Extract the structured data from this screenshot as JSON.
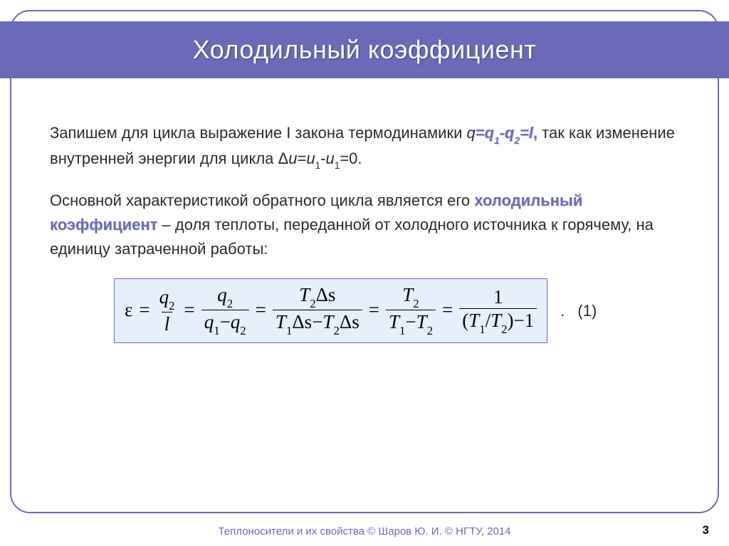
{
  "colors": {
    "accent": "#6a6ab8",
    "formula_bg": "#e6effa",
    "text": "#2b2b2b",
    "title_text": "#ffffff"
  },
  "typography": {
    "title_fontsize": 36,
    "body_fontsize": 22,
    "formula_fontsize": 27,
    "formula_family": "Times New Roman"
  },
  "title": "Холодильный коэффициент",
  "body": {
    "p1_lead": " Запишем для цикла выражение I закона термодинамики ",
    "p1_eq_prefix": "q",
    "p1_eq_accent": "=q",
    "p1_eq_sub1": "1",
    "p1_eq_mid": "-q",
    "p1_eq_sub2": "2",
    "p1_eq_tail": "=l",
    "p1_comma": ",",
    "p1_rest_a": " так как изменение внутренней энергии для цикла Δ",
    "p1_rest_u": "u",
    "p1_rest_eq": "=",
    "p1_rest_u1": "u",
    "p1_rest_s1": "1",
    "p1_rest_minus": "-",
    "p1_rest_u2": "u",
    "p1_rest_s2": "1",
    "p1_rest_zero": "=0.",
    "p2_lead": " Основной характеристикой обратного цикла является его ",
    "p2_accent": "холодильный коэффициент",
    "p2_rest": " – доля теплоты, переданной от холодного источника к горячему, на единицу затраченной работы:"
  },
  "formula": {
    "epsilon": "ε",
    "eq": "=",
    "f1": {
      "num": "q",
      "num_sub": "2",
      "den": "l"
    },
    "f2": {
      "num": "q",
      "num_sub": "2",
      "den_a": "q",
      "den_a_sub": "1",
      "den_op": "−",
      "den_b": "q",
      "den_b_sub": "2"
    },
    "f3": {
      "num_a": "T",
      "num_a_sub": "2",
      "num_b": "Δs",
      "den_a": "T",
      "den_a_sub": "1",
      "den_b": "Δs",
      "den_op": "−",
      "den_c": "T",
      "den_c_sub": "2",
      "den_d": "Δs"
    },
    "f4": {
      "num": "T",
      "num_sub": "2",
      "den_a": "T",
      "den_a_sub": "1",
      "den_op": "−",
      "den_b": "T",
      "den_b_sub": "2"
    },
    "f5": {
      "num": "1",
      "den_open": "(",
      "den_a": "T",
      "den_a_sub": "1",
      "den_slash": "/",
      "den_b": "T",
      "den_b_sub": "2",
      "den_close": ")",
      "den_op": "−",
      "den_one": "1"
    },
    "trail_dot": ".",
    "label": "(1)"
  },
  "footer": {
    "text": "Теплоносители и их свойства © Шаров Ю. И. © НГТУ, 2014",
    "page": "3"
  }
}
